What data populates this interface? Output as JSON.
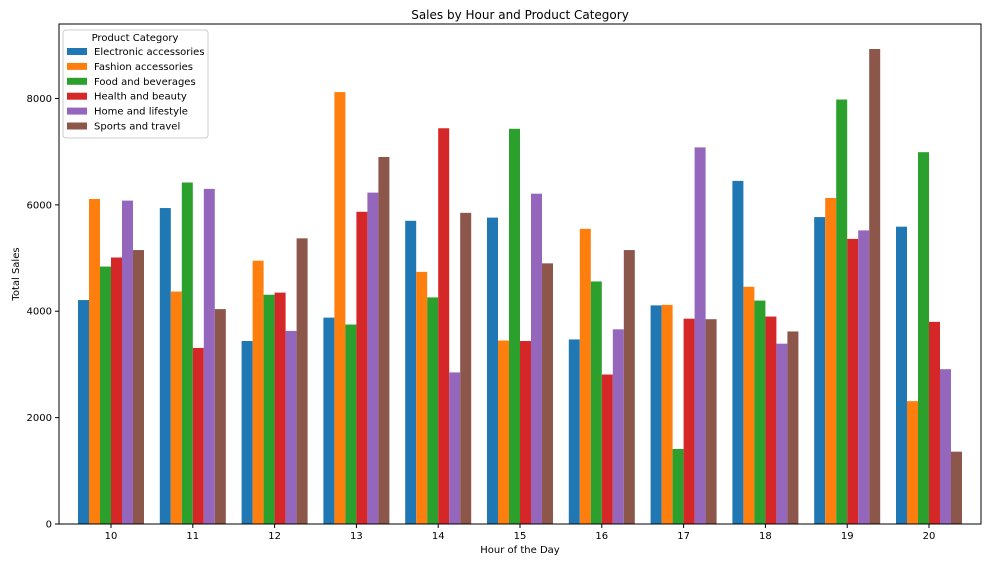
{
  "chart_data": {
    "type": "bar",
    "title": "Sales by Hour and Product Category",
    "xlabel": "Hour of the Day",
    "ylabel": "Total Sales",
    "categories": [
      "10",
      "11",
      "12",
      "13",
      "14",
      "15",
      "16",
      "17",
      "18",
      "19",
      "20"
    ],
    "ylim": [
      0,
      9400
    ],
    "yticks": [
      0,
      2000,
      4000,
      6000,
      8000
    ],
    "grid": false,
    "legend": {
      "title": "Product Category",
      "placement": "top-left"
    },
    "series": [
      {
        "name": "Electronic accessories",
        "color": "#1f77b4",
        "values": [
          4210,
          5940,
          3440,
          3880,
          5700,
          5760,
          3470,
          4110,
          6450,
          5770,
          5590
        ]
      },
      {
        "name": "Fashion accessories",
        "color": "#ff7f0e",
        "values": [
          6110,
          4370,
          4950,
          8120,
          4740,
          3450,
          5550,
          4120,
          4460,
          6130,
          2310
        ]
      },
      {
        "name": "Food and beverages",
        "color": "#2ca02c",
        "values": [
          4840,
          6420,
          4310,
          3750,
          4260,
          7430,
          4560,
          1410,
          4200,
          7980,
          6990
        ]
      },
      {
        "name": "Health and beauty",
        "color": "#d62728",
        "values": [
          5010,
          3310,
          4350,
          5870,
          7440,
          3440,
          2810,
          3860,
          3900,
          5360,
          3800
        ]
      },
      {
        "name": "Home and lifestyle",
        "color": "#9467bd",
        "values": [
          6080,
          6300,
          3630,
          6230,
          2850,
          6210,
          3660,
          7080,
          3390,
          5520,
          2910
        ]
      },
      {
        "name": "Sports and travel",
        "color": "#8c564b",
        "values": [
          5150,
          4040,
          5370,
          6900,
          5850,
          4900,
          5150,
          3850,
          3620,
          8930,
          1360
        ]
      }
    ]
  }
}
